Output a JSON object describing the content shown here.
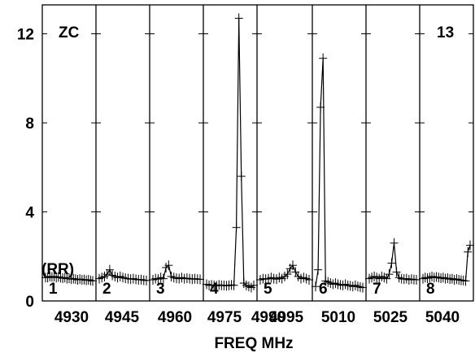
{
  "chart_data": {
    "type": "line",
    "title": "",
    "corner_labels": {
      "left": "ZC",
      "right": "13",
      "polarization": "(RR)"
    },
    "xlabel": "FREQ MHz",
    "ylabel": "",
    "ylim": [
      0,
      13.3
    ],
    "yticks": [
      {
        "value": 0,
        "label": "0"
      },
      {
        "value": 4,
        "label": "4"
      },
      {
        "value": 8,
        "label": "8"
      },
      {
        "value": 12,
        "label": "12"
      }
    ],
    "xticks": [
      "4930",
      "4945",
      "4960",
      "4975",
      "4990",
      "4995",
      "5010",
      "5025",
      "5040"
    ],
    "grid": false,
    "color": "#000000",
    "panels": [
      {
        "label": "1",
        "values": [
          1.05,
          1.05,
          1.1,
          1.08,
          1.1,
          1.05,
          1.08,
          1.05,
          1.02,
          1.05,
          1.0,
          1.02,
          0.98,
          1.0,
          0.98,
          0.95,
          0.98,
          0.95,
          0.96,
          0.93,
          0.95,
          0.92,
          0.9
        ]
      },
      {
        "label": "2",
        "values": [
          1.0,
          1.05,
          1.1,
          1.2,
          1.4,
          1.15,
          1.1,
          1.05,
          1.1,
          1.05,
          1.02,
          1.0,
          0.98,
          1.0,
          0.97,
          0.95,
          0.96,
          0.93,
          0.92
        ]
      },
      {
        "label": "3",
        "values": [
          0.95,
          1.0,
          0.98,
          1.05,
          1.0,
          1.5,
          1.6,
          1.1,
          1.05,
          1.02,
          1.0,
          1.05,
          1.0,
          1.02,
          1.0,
          0.98,
          1.0,
          0.98,
          0.97
        ]
      },
      {
        "label": "4",
        "values": [
          0.75,
          0.7,
          0.72,
          0.7,
          0.68,
          0.72,
          0.7,
          0.7,
          0.68,
          0.7,
          0.72,
          0.7,
          3.3,
          12.7,
          5.6,
          0.8,
          0.7,
          0.65,
          0.6,
          0.7
        ]
      },
      {
        "label": "5",
        "values": [
          0.95,
          1.0,
          0.98,
          1.0,
          1.05,
          1.0,
          0.98,
          1.05,
          1.0,
          1.1,
          1.2,
          1.45,
          1.6,
          1.3,
          1.1,
          1.0,
          1.05,
          1.0,
          0.95
        ]
      },
      {
        "label": "6",
        "values": [
          0.65,
          1.4,
          8.7,
          10.9,
          0.9,
          0.85,
          0.8,
          0.75,
          0.8,
          0.75,
          0.72,
          0.7,
          0.75,
          0.7,
          0.68,
          0.65,
          0.7,
          0.65,
          0.62,
          0.6
        ]
      },
      {
        "label": "7",
        "values": [
          1.0,
          1.05,
          1.1,
          1.05,
          1.0,
          1.1,
          1.05,
          1.0,
          1.2,
          1.7,
          2.6,
          1.3,
          1.05,
          1.0,
          0.98,
          1.0,
          0.95,
          0.98,
          0.96,
          0.95
        ]
      },
      {
        "label": "8",
        "values": [
          1.0,
          1.05,
          1.02,
          1.05,
          1.1,
          1.05,
          1.08,
          1.05,
          1.02,
          1.05,
          1.0,
          1.02,
          0.98,
          1.0,
          0.95,
          0.98,
          0.95,
          0.93,
          0.92,
          0.9,
          2.2,
          2.5
        ]
      }
    ]
  }
}
